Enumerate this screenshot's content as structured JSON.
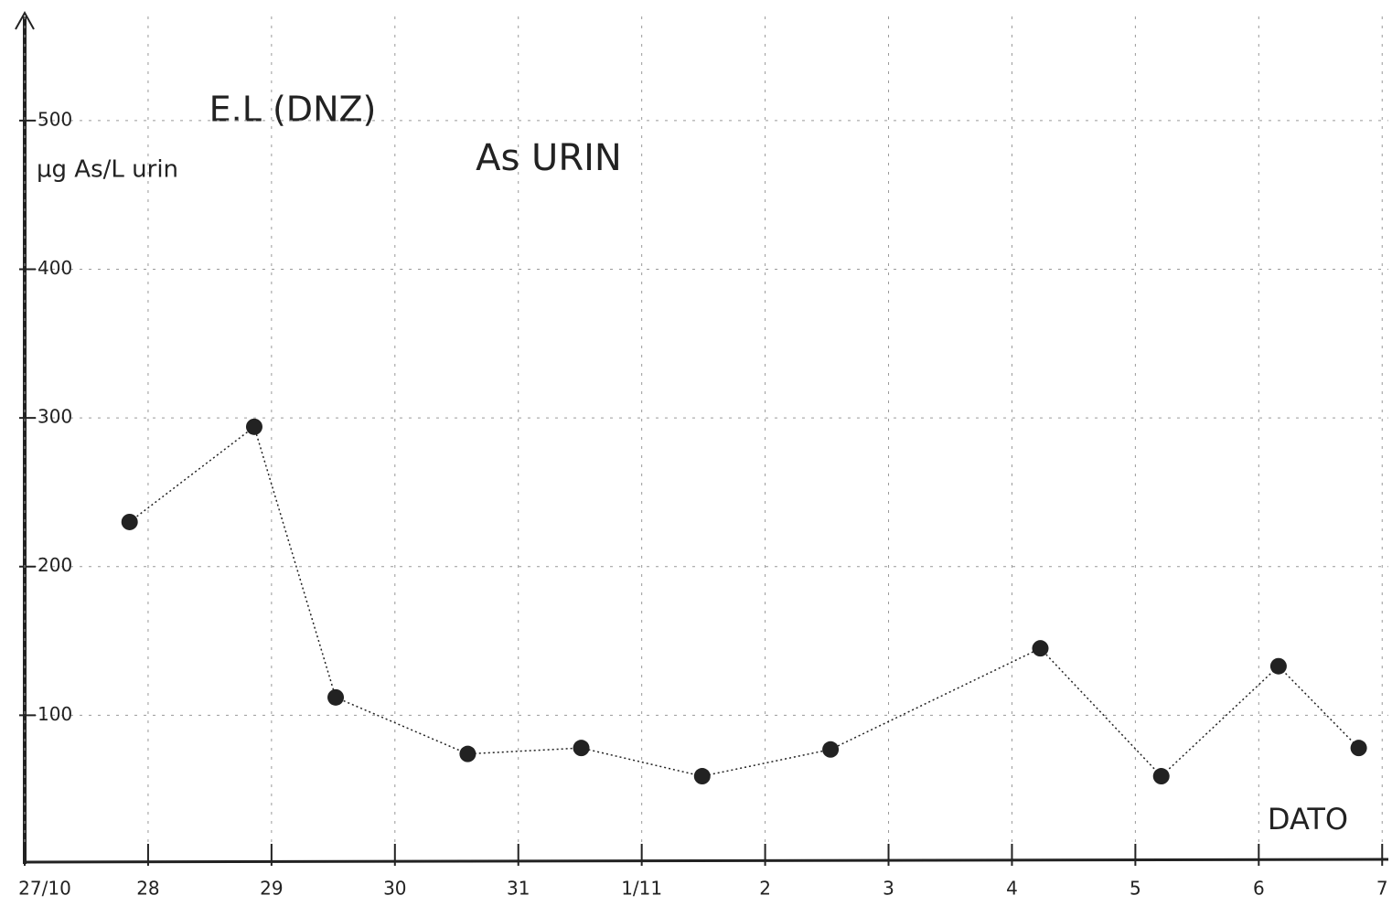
{
  "chart_data": {
    "type": "line",
    "title": "As URIN",
    "subtitle": "E.L (DNZ)",
    "y_label": "µg As/L urin",
    "x_label": "DATO",
    "x": [
      0.85,
      1.86,
      2.52,
      3.59,
      4.51,
      5.49,
      6.53,
      8.23,
      9.21,
      10.16,
      10.81
    ],
    "values": [
      230,
      294,
      112,
      74,
      78,
      59,
      77,
      145,
      59,
      133,
      78
    ],
    "color": "#222222",
    "xlim": [
      0,
      11.05
    ],
    "xticks": [
      {
        "value": 0,
        "label": "27/10"
      },
      {
        "value": 1,
        "label": "28"
      },
      {
        "value": 2,
        "label": "29"
      },
      {
        "value": 3,
        "label": "30"
      },
      {
        "value": 4,
        "label": "31"
      },
      {
        "value": 5,
        "label": "1/11"
      },
      {
        "value": 6,
        "label": "2"
      },
      {
        "value": 7,
        "label": "3"
      },
      {
        "value": 8,
        "label": "4"
      },
      {
        "value": 9,
        "label": "5"
      },
      {
        "value": 10,
        "label": "6"
      },
      {
        "value": 11,
        "label": "7"
      }
    ],
    "ylim": [
      0,
      570
    ],
    "yticks": [
      100,
      200,
      300,
      400,
      500
    ],
    "grid": true
  }
}
